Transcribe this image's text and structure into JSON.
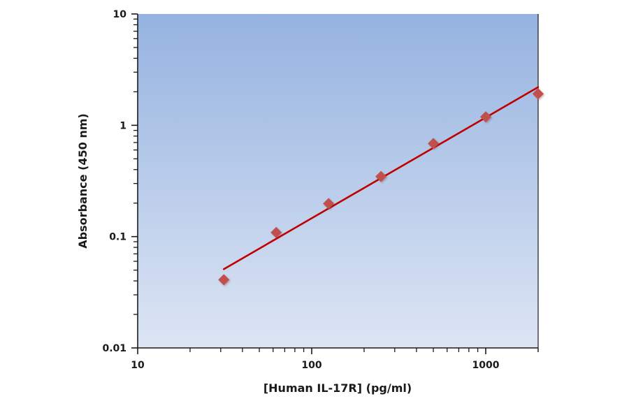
{
  "chart_data": {
    "type": "scatter",
    "title": "",
    "xlabel": "[Human IL-17R] (pg/ml)",
    "ylabel": "Absorbance (450 nm)",
    "xscale": "log",
    "yscale": "log",
    "xlim": [
      10,
      2000
    ],
    "ylim": [
      0.01,
      10
    ],
    "x_ticks": [
      "10",
      "100",
      "1000"
    ],
    "y_ticks": [
      "0.01",
      "0.1",
      "1",
      "10"
    ],
    "grid": false,
    "legend": null,
    "series": [
      {
        "name": "Standard",
        "type": "scatter",
        "marker": "diamond",
        "color": "#c0504d",
        "x": [
          31.25,
          62.5,
          125,
          250,
          500,
          1000,
          2000
        ],
        "y": [
          0.041,
          0.109,
          0.198,
          0.347,
          0.686,
          1.19,
          1.92
        ]
      },
      {
        "name": "Fit",
        "type": "line",
        "color": "#c00000",
        "x": [
          31.25,
          2000
        ],
        "y": [
          0.051,
          2.2
        ]
      }
    ]
  },
  "colors": {
    "plot_bg_top": "#95b3e0",
    "plot_bg_bottom": "#dde5f4",
    "axis": "#1a1a1a",
    "marker": "#c0504d",
    "line": "#c00000"
  }
}
